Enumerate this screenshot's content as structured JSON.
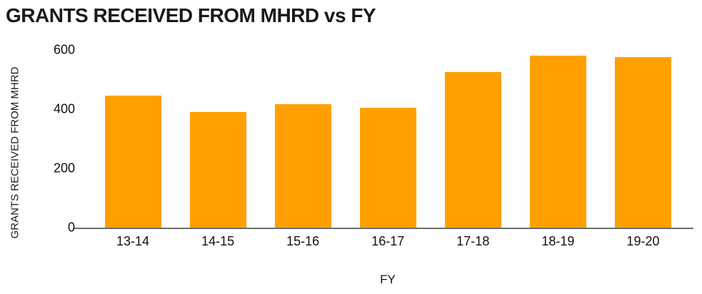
{
  "chart_data": {
    "type": "bar",
    "title": "GRANTS RECEIVED FROM MHRD vs FY",
    "xlabel": "FY",
    "ylabel": "GRANTS RECEIVED FROM MHRD",
    "categories": [
      "13-14",
      "14-15",
      "15-16",
      "16-17",
      "17-18",
      "18-19",
      "19-20"
    ],
    "values": [
      445,
      390,
      418,
      405,
      525,
      580,
      577
    ],
    "ylim": [
      0,
      600
    ],
    "yticks": [
      0,
      200,
      400,
      600
    ],
    "grid": false,
    "legend": false,
    "colors": {
      "bar": "#FFA000",
      "axis_line": "#6e6e6e",
      "text": "#1a1a1a",
      "background": "#ffffff"
    }
  }
}
